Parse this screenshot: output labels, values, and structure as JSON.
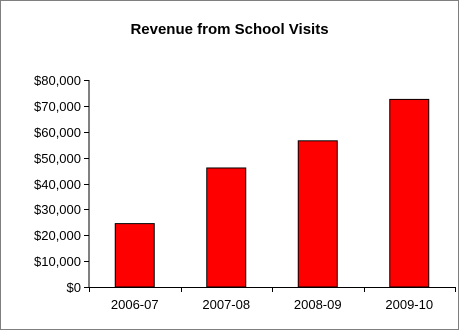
{
  "chart_data": {
    "type": "bar",
    "title": "Revenue from School Visits",
    "xlabel": "",
    "ylabel": "",
    "categories": [
      "2006-07",
      "2007-08",
      "2008-09",
      "2009-10"
    ],
    "values": [
      24500,
      46000,
      56500,
      72500
    ],
    "ylim": [
      0,
      80000
    ],
    "yticks": [
      0,
      10000,
      20000,
      30000,
      40000,
      50000,
      60000,
      70000,
      80000
    ],
    "ytick_labels": [
      "$0",
      "$10,000",
      "$20,000",
      "$30,000",
      "$40,000",
      "$50,000",
      "$60,000",
      "$70,000",
      "$80,000"
    ],
    "grid": false,
    "legend": "none",
    "bar_color": "#ff0000",
    "bar_edge_color": "#000000"
  }
}
